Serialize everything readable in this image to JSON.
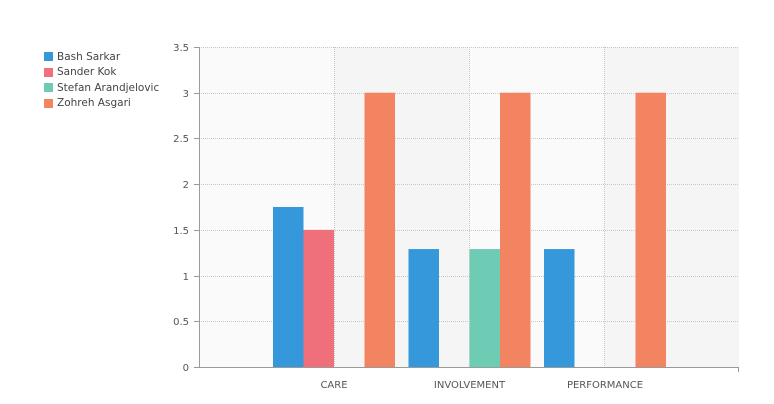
{
  "chart_data": {
    "type": "bar",
    "title": "",
    "xlabel": "",
    "ylabel": "",
    "categories": [
      "CARE",
      "INVOLVEMENT",
      "PERFORMANCE"
    ],
    "series": [
      {
        "name": "Bash Sarkar",
        "color": "#3498db",
        "values": [
          1.75,
          1.29,
          1.29
        ]
      },
      {
        "name": "Sander Kok",
        "color": "#ef6f7b",
        "values": [
          1.5,
          0,
          0
        ]
      },
      {
        "name": "Stefan Arandjelovic",
        "color": "#6ecbb4",
        "values": [
          0,
          1.29,
          0
        ]
      },
      {
        "name": "Zohreh Asgari",
        "color": "#f28462",
        "values": [
          3,
          3,
          3
        ]
      }
    ],
    "ylim": [
      0,
      3.5
    ],
    "yticks": [
      {
        "value": 0,
        "label": "0"
      },
      {
        "value": 0.5,
        "label": "0.5"
      },
      {
        "value": 1,
        "label": "1"
      },
      {
        "value": 1.5,
        "label": "1.5"
      },
      {
        "value": 2,
        "label": "2"
      },
      {
        "value": 2.5,
        "label": "2.5"
      },
      {
        "value": 3,
        "label": "3"
      },
      {
        "value": 3.5,
        "label": "3.5"
      }
    ],
    "grid": true,
    "legend_position": "top-left"
  }
}
